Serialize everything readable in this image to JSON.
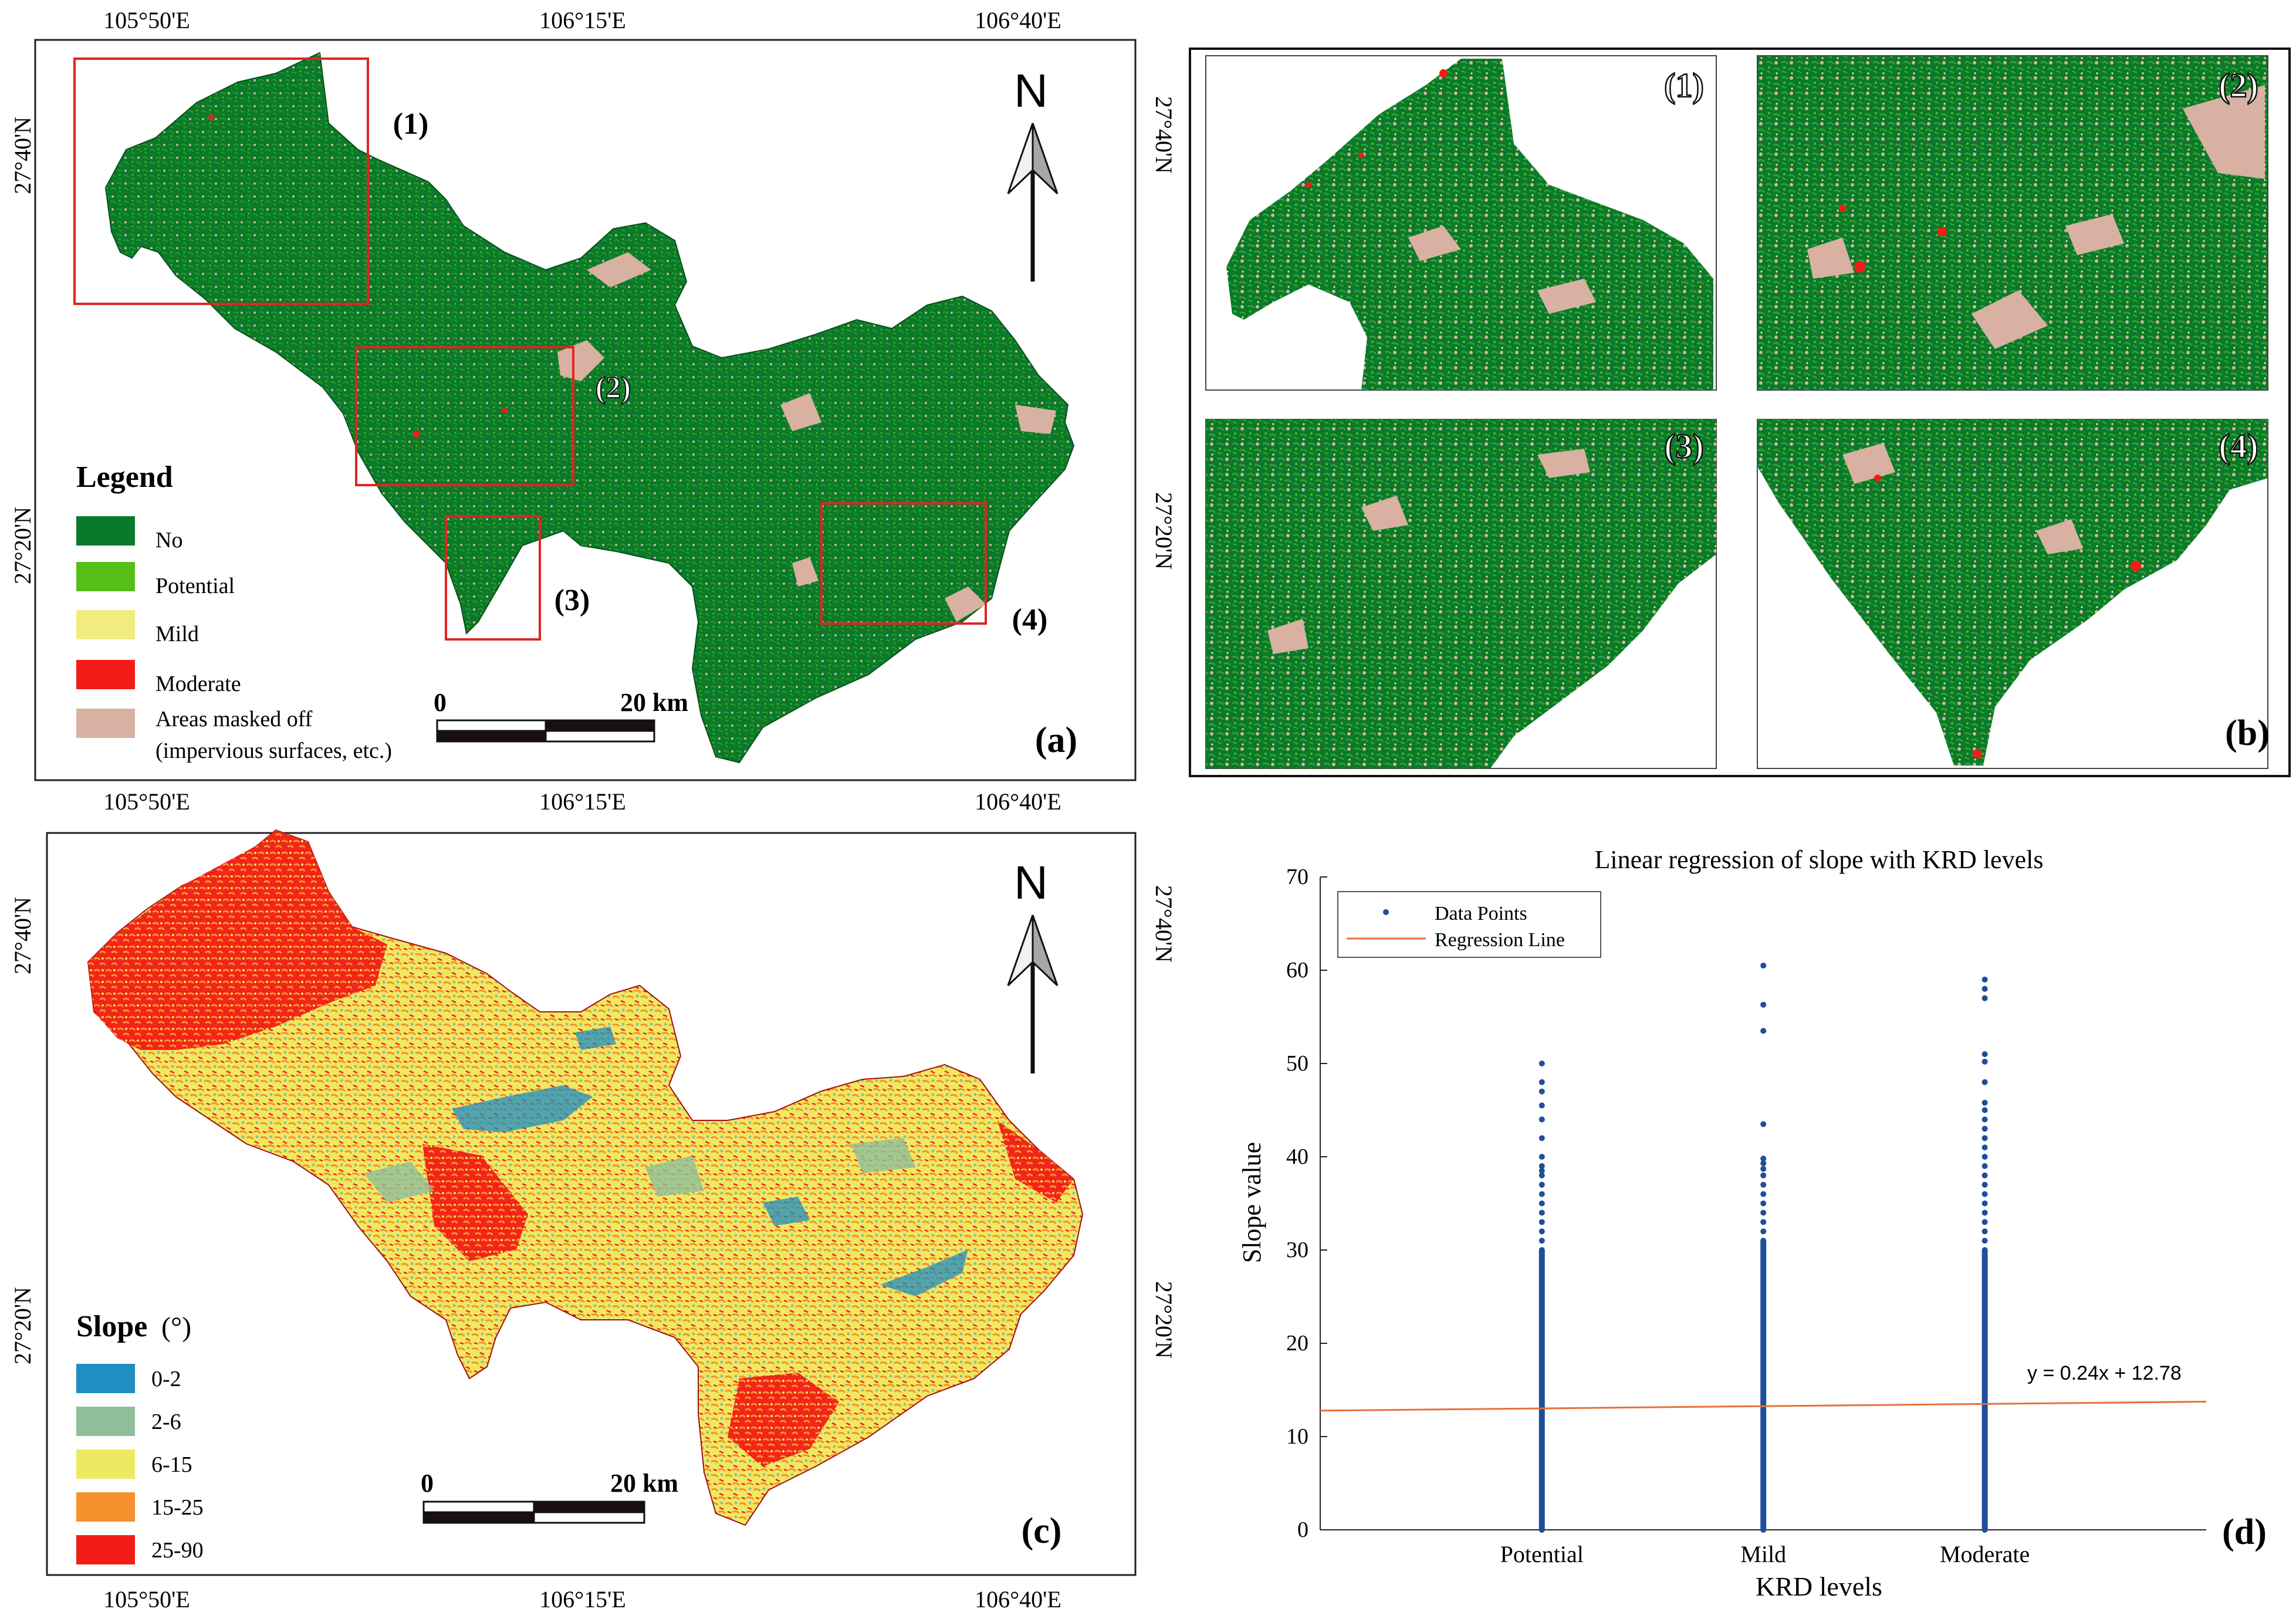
{
  "panels": {
    "a": {
      "tag": "(a)",
      "coord_top": [
        "105°50'E",
        "106°15'E",
        "106°40'E"
      ],
      "coord_left": [
        "27°40'N",
        "27°20'N"
      ],
      "coord_right": [
        "27°40'N",
        "27°20'N"
      ],
      "regions": [
        "(1)",
        "(2)",
        "(3)",
        "(4)"
      ],
      "north": "N",
      "legend": {
        "title": "Legend",
        "items": [
          {
            "label": "No",
            "color": "#0a7a2a"
          },
          {
            "label": "Potential",
            "color": "#55bf18"
          },
          {
            "label": "Mild",
            "color": "#f1ec7e"
          },
          {
            "label": "Moderate",
            "color": "#f21c17"
          },
          {
            "label": "Areas masked off",
            "label2": "(impervious surfaces, etc.)",
            "color": "#d8b1a2"
          }
        ]
      },
      "scale": {
        "start": "0",
        "end": "20 km"
      }
    },
    "b": {
      "tag": "(b)",
      "insets": [
        "(1)",
        "(2)",
        "(3)",
        "(4)"
      ]
    },
    "c": {
      "tag": "(c)",
      "coord_top": [
        "105°50'E",
        "106°15'E",
        "106°40'E"
      ],
      "coord_bottom": [
        "105°50'E",
        "106°15'E",
        "106°40'E"
      ],
      "coord_left": [
        "27°40'N",
        "27°20'N"
      ],
      "coord_right": [
        "27°40'N",
        "27°20'N"
      ],
      "north": "N",
      "legend": {
        "title": "Slope",
        "unit": "(°)",
        "items": [
          {
            "label": "0-2",
            "color": "#1f8ec2"
          },
          {
            "label": "2-6",
            "color": "#8fbf9a"
          },
          {
            "label": "6-15",
            "color": "#eee962"
          },
          {
            "label": "15-25",
            "color": "#f7912d"
          },
          {
            "label": "25-90",
            "color": "#f21c17"
          }
        ]
      },
      "scale": {
        "start": "0",
        "end": "20 km"
      }
    },
    "d": {
      "tag": "(d)"
    }
  },
  "chart_data": {
    "type": "scatter",
    "title": "Linear regression of slope with KRD levels",
    "xlabel": "KRD levels",
    "ylabel": "Slope value",
    "categories": [
      "Potential",
      "Mild",
      "Moderate"
    ],
    "x_positions": [
      1,
      2,
      3
    ],
    "xlim": [
      -0.001,
      4.0
    ],
    "ylim": [
      0,
      70
    ],
    "yticks": [
      0,
      10,
      20,
      30,
      40,
      50,
      60,
      70
    ],
    "legend": {
      "position": "top-left",
      "entries": [
        "Data Points",
        "Regression Line"
      ]
    },
    "series": [
      {
        "name": "Data Points",
        "color": "#1f4e9a",
        "points": [
          {
            "x": 1,
            "y_dense": [
              0,
              30
            ],
            "outliers": [
              31,
              32,
              33,
              34,
              35,
              36,
              37,
              38,
              38.5,
              39,
              40,
              42,
              44,
              45.5,
              47,
              48,
              50
            ]
          },
          {
            "x": 2,
            "y_dense": [
              0,
              31
            ],
            "outliers": [
              32,
              33,
              34,
              35,
              36,
              37,
              38,
              38.7,
              39.3,
              39.8,
              43.5,
              53.5,
              56.3,
              60.5
            ]
          },
          {
            "x": 3,
            "y_dense": [
              0,
              30
            ],
            "outliers": [
              31,
              32,
              33,
              34,
              35,
              36,
              37,
              38,
              39,
              40,
              41,
              42,
              43,
              44,
              45,
              45.8,
              48,
              50.2,
              51,
              57,
              58,
              59
            ]
          }
        ]
      },
      {
        "name": "Regression Line",
        "color": "#e8703a",
        "slope": 0.24,
        "intercept": 12.78
      }
    ],
    "annotation": "y = 0.24x + 12.78"
  }
}
